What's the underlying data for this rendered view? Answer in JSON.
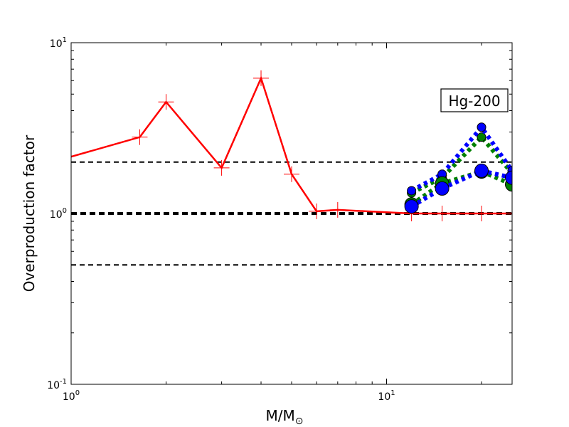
{
  "chart_data": {
    "type": "line",
    "xscale": "log",
    "yscale": "log",
    "xlim": [
      1,
      25
    ],
    "ylim": [
      0.1,
      10
    ],
    "xlabel": "M/M",
    "xlabel_sub": "⊙",
    "ylabel": "Overproduction factor",
    "annotation": "Hg-200",
    "x_ticks": [
      {
        "value": 1,
        "base": "10",
        "exp": "0"
      },
      {
        "value": 10,
        "base": "10",
        "exp": "1"
      }
    ],
    "y_ticks": [
      {
        "value": 0.1,
        "base": "10",
        "exp": "-1"
      },
      {
        "value": 1,
        "base": "10",
        "exp": "0"
      },
      {
        "value": 10,
        "base": "10",
        "exp": "1"
      }
    ],
    "hlines": [
      {
        "y": 2,
        "color": "#000000",
        "style": "dashed",
        "weight": "thin"
      },
      {
        "y": 1,
        "color": "#000000",
        "style": "dashed",
        "weight": "thick"
      },
      {
        "y": 0.5,
        "color": "#000000",
        "style": "dashed",
        "weight": "thin"
      }
    ],
    "series": [
      {
        "color": "#ff0000",
        "line": "solid",
        "marker": "plus",
        "x": [
          1.0,
          1.65,
          2.0,
          3.0,
          4.0,
          5.0,
          6.0,
          7.0,
          12.0,
          15.0,
          20.0,
          25.0
        ],
        "y": [
          2.15,
          2.8,
          4.5,
          1.85,
          6.2,
          1.7,
          1.03,
          1.05,
          1.0,
          1.0,
          1.0,
          1.0
        ],
        "marker_x": [
          1.65,
          2.0,
          3.0,
          4.0,
          5.0,
          6.0,
          7.0,
          12.0,
          15.0,
          20.0
        ]
      },
      {
        "color": "#008000",
        "line": "dotted",
        "marker": "circle",
        "marker_size": "small",
        "x": [
          12.0,
          15.0,
          20.0,
          25.0
        ],
        "y": [
          1.32,
          1.62,
          2.8,
          1.72
        ]
      },
      {
        "color": "#0000ff",
        "line": "dotted",
        "marker": "circle",
        "marker_size": "small",
        "x": [
          12.0,
          15.0,
          20.0,
          25.0
        ],
        "y": [
          1.36,
          1.7,
          3.2,
          1.78
        ]
      },
      {
        "color": "#008000",
        "line": "dotted",
        "marker": "circle",
        "marker_size": "large",
        "x": [
          12.0,
          15.0,
          20.0,
          25.0
        ],
        "y": [
          1.13,
          1.5,
          1.76,
          1.48
        ]
      },
      {
        "color": "#0000ff",
        "line": "dotted",
        "marker": "circle",
        "marker_size": "large",
        "x": [
          12.0,
          15.0,
          20.0,
          25.0
        ],
        "y": [
          1.1,
          1.4,
          1.78,
          1.62
        ]
      }
    ]
  }
}
